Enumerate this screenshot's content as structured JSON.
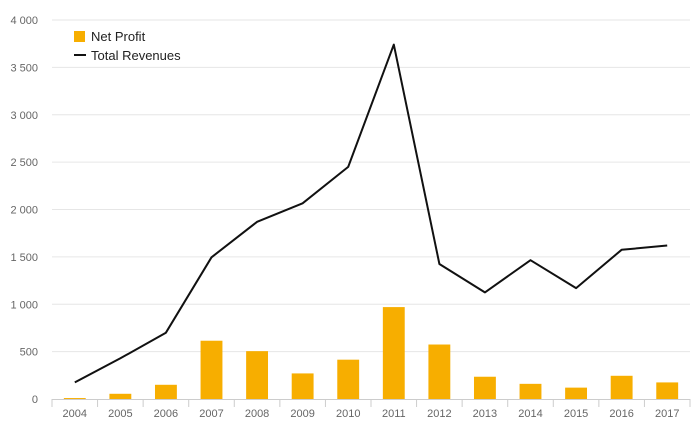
{
  "chart_data": {
    "type": "bar",
    "title": "",
    "xlabel": "",
    "ylabel": "",
    "categories": [
      "2004",
      "2005",
      "2006",
      "2007",
      "2008",
      "2009",
      "2010",
      "2011",
      "2012",
      "2013",
      "2014",
      "2015",
      "2016",
      "2017"
    ],
    "series": [
      {
        "name": "Net Profit",
        "type": "bar",
        "color": "#f7ae00",
        "values": [
          10,
          55,
          150,
          615,
          505,
          270,
          415,
          970,
          575,
          235,
          160,
          120,
          245,
          175
        ]
      },
      {
        "name": "Total Revenues",
        "type": "line",
        "color": "#111111",
        "values": [
          175,
          430,
          700,
          1495,
          1870,
          2065,
          2450,
          3740,
          1425,
          1125,
          1465,
          1170,
          1575,
          1620
        ]
      }
    ],
    "ylim": [
      0,
      4000
    ],
    "yticks": [
      0,
      500,
      1000,
      1500,
      2000,
      2500,
      3000,
      3500,
      4000
    ],
    "ytick_labels": [
      "0",
      "500",
      "1 000",
      "1 500",
      "2 000",
      "2 500",
      "3 000",
      "3 500",
      "4 000"
    ],
    "grid": true,
    "legend_position": "top-left"
  }
}
